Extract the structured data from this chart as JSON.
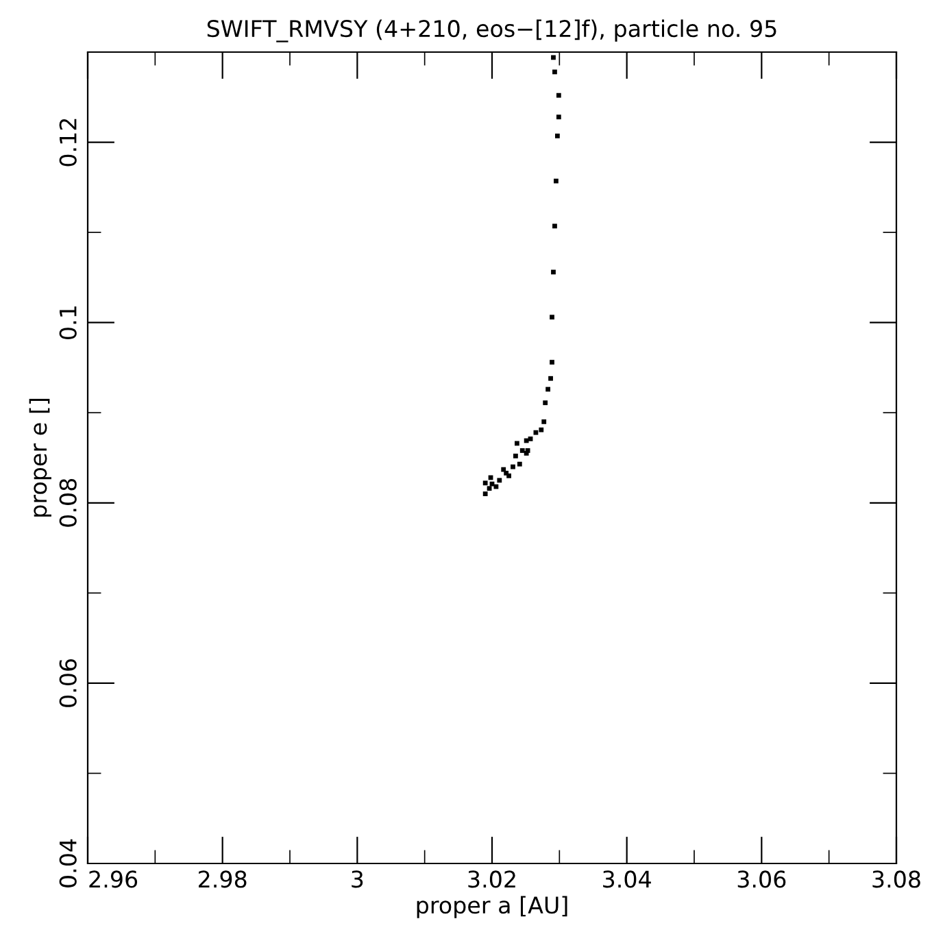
{
  "chart_data": {
    "type": "scatter",
    "title": "SWIFT_RMVSY (4+210, eos−[12]f), particle no. 95",
    "xlabel": "proper a [AU]",
    "ylabel": "proper e []",
    "xlim": [
      2.96,
      3.08
    ],
    "ylim": [
      0.04,
      0.13
    ],
    "xticks": [
      2.96,
      {
        "value": 2.97,
        "label": null
      },
      2.98,
      {
        "value": 2.99,
        "label": null
      },
      3,
      {
        "value": 3.01,
        "label": null
      },
      3.02,
      {
        "value": 3.03,
        "label": null
      },
      3.04,
      {
        "value": 3.05,
        "label": null
      },
      3.06,
      {
        "value": 3.07,
        "label": null
      },
      3.08
    ],
    "yticks": [
      0.04,
      {
        "value": 0.05,
        "label": null
      },
      0.06,
      {
        "value": 0.07,
        "label": null
      },
      0.08,
      {
        "value": 0.09,
        "label": null
      },
      0.1,
      {
        "value": 0.11,
        "label": null
      },
      0.12
    ],
    "grid": false,
    "marker": "square",
    "series": [
      {
        "color": "#000000",
        "x": [
          3.0291,
          3.0293,
          3.0299,
          3.0299,
          3.0297,
          3.0295,
          3.0293,
          3.0291,
          3.0289,
          3.0289,
          3.0287,
          3.0283,
          3.0279,
          3.0277,
          3.0273,
          3.0265,
          3.0257,
          3.0253,
          3.0251,
          3.0237,
          3.0235,
          3.0217,
          3.0198,
          3.019,
          3.019,
          3.0206,
          3.0225,
          3.0241,
          3.0251,
          3.0211,
          3.0231,
          3.02,
          3.0245,
          3.0221,
          3.0196
        ],
        "values": [
          0.1294,
          0.1278,
          0.1252,
          0.1228,
          0.1207,
          0.1157,
          0.1107,
          0.1056,
          0.1006,
          0.0956,
          0.0938,
          0.0926,
          0.0911,
          0.089,
          0.0881,
          0.0878,
          0.0871,
          0.0858,
          0.0869,
          0.0866,
          0.0852,
          0.0837,
          0.0828,
          0.0822,
          0.081,
          0.0818,
          0.083,
          0.0843,
          0.0855,
          0.0825,
          0.084,
          0.0821,
          0.0858,
          0.0833,
          0.0816
        ]
      }
    ]
  }
}
